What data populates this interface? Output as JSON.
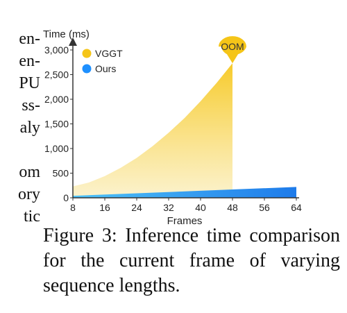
{
  "left_text_fragments": [
    "en-",
    "en-",
    "PU",
    "ss-",
    "aly",
    "",
    "om",
    "ory",
    "tic"
  ],
  "caption": "Figure 3: Inference time comparison for the current frame of varying sequence lengths.",
  "chart_data": {
    "type": "area",
    "title": "",
    "xlabel": "Frames",
    "ylabel": "Time (ms)",
    "xlim": [
      8,
      64
    ],
    "ylim": [
      0,
      3000
    ],
    "x_ticks": [
      8,
      16,
      24,
      32,
      40,
      48,
      56,
      64
    ],
    "y_ticks": [
      0,
      500,
      1000,
      1500,
      2000,
      2500,
      3000
    ],
    "y_tick_labels": [
      "0",
      "500",
      "1,000",
      "1,500",
      "2,000",
      "2,500",
      "3,000"
    ],
    "grid": false,
    "legend_position": "top-left",
    "series": [
      {
        "name": "VGGT",
        "color": "#F5C518",
        "x": [
          8,
          12,
          16,
          20,
          24,
          28,
          32,
          36,
          40,
          44,
          48
        ],
        "y": [
          230,
          310,
          440,
          610,
          810,
          1050,
          1320,
          1620,
          1960,
          2330,
          2730
        ]
      },
      {
        "name": "Ours",
        "color": "#1E90FF",
        "x": [
          8,
          64
        ],
        "y": [
          40,
          220
        ]
      }
    ],
    "annotations": [
      {
        "text": "OOM",
        "x": 48,
        "y": 2730,
        "series": "VGGT"
      }
    ]
  }
}
